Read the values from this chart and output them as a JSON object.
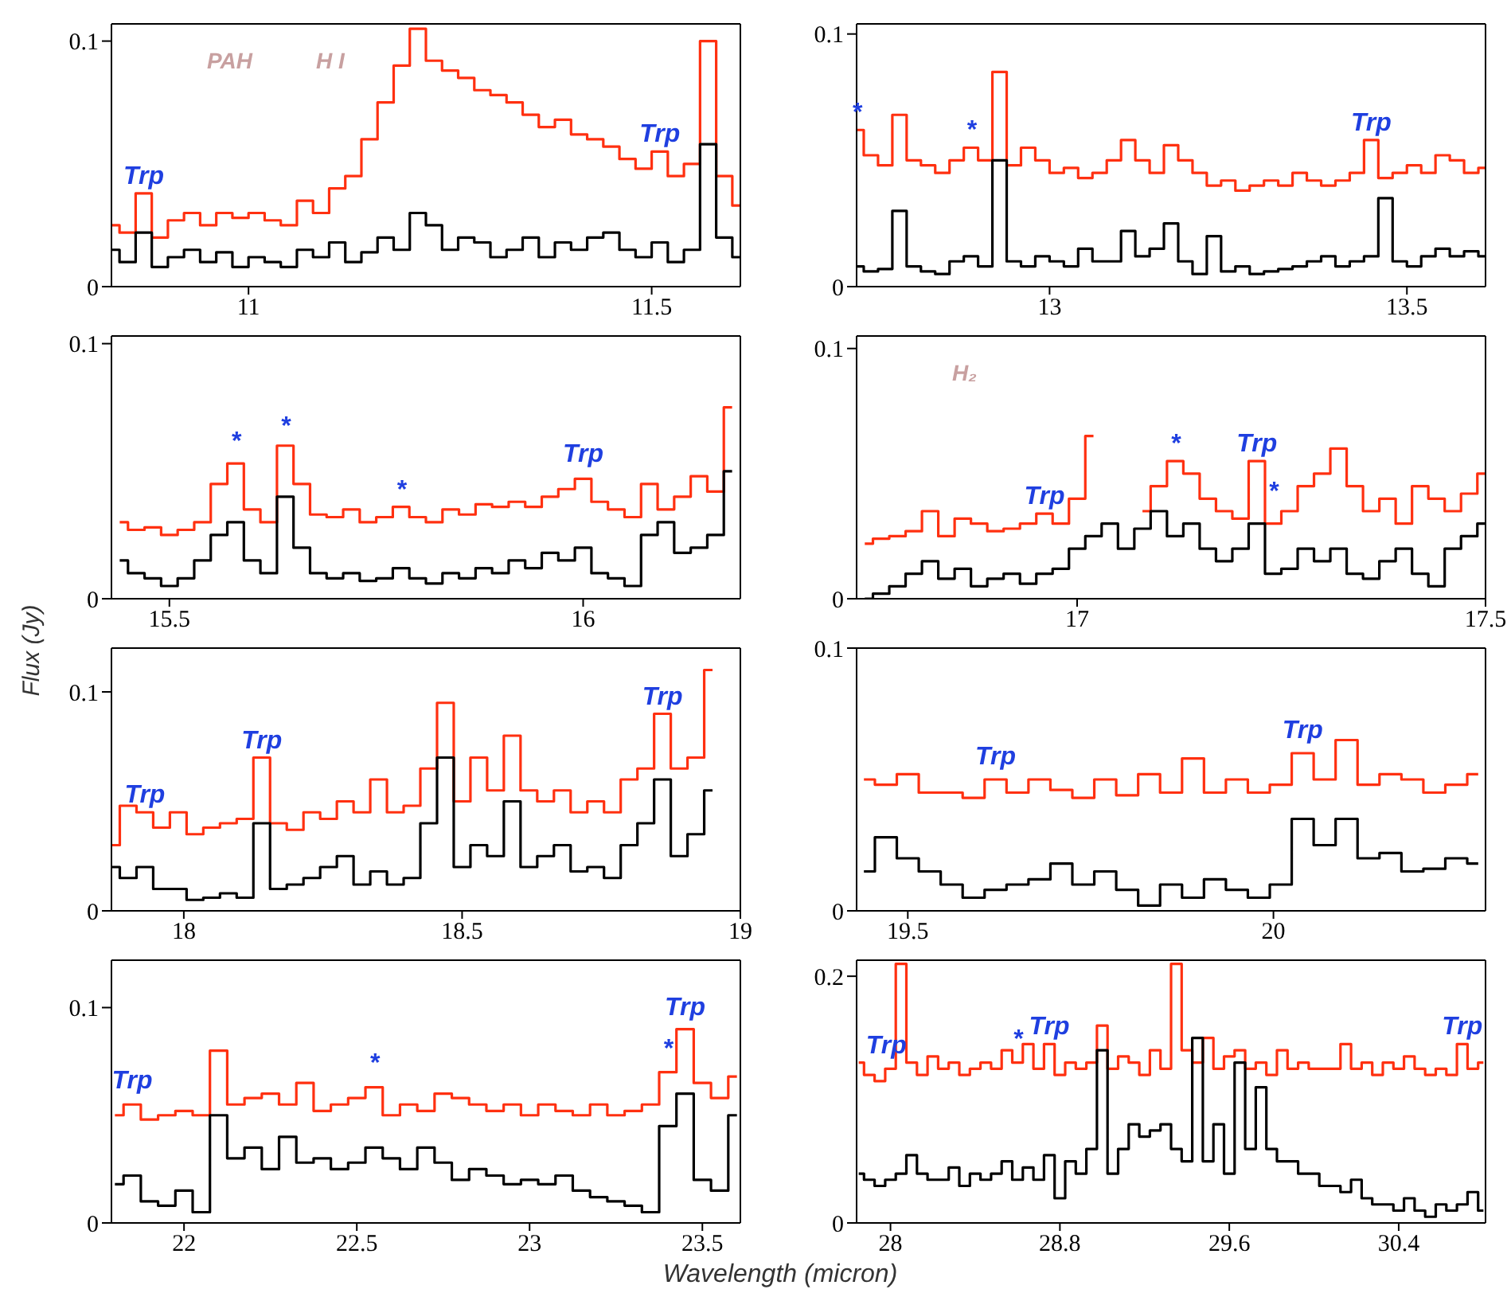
{
  "chart_data": [
    {
      "type": "step",
      "xlim": [
        10.83,
        11.61
      ],
      "xticks": [
        11,
        11.5
      ],
      "ylim": [
        0,
        0.107
      ],
      "yticks": [
        0,
        0.1
      ],
      "grid": false,
      "legend": false,
      "x": [
        10.83,
        10.85,
        10.87,
        10.89,
        10.91,
        10.93,
        10.95,
        10.97,
        10.99,
        11.01,
        11.03,
        11.05,
        11.07,
        11.09,
        11.11,
        11.13,
        11.15,
        11.17,
        11.19,
        11.21,
        11.23,
        11.25,
        11.27,
        11.29,
        11.31,
        11.33,
        11.35,
        11.37,
        11.39,
        11.41,
        11.43,
        11.45,
        11.47,
        11.49,
        11.51,
        11.53,
        11.55,
        11.57,
        11.59,
        11.61
      ],
      "series": [
        {
          "color": "#ff3010",
          "values": [
            0.025,
            0.022,
            0.038,
            0.02,
            0.027,
            0.03,
            0.025,
            0.03,
            0.028,
            0.03,
            0.027,
            0.025,
            0.035,
            0.03,
            0.04,
            0.045,
            0.06,
            0.075,
            0.09,
            0.105,
            0.092,
            0.088,
            0.085,
            0.08,
            0.078,
            0.075,
            0.07,
            0.065,
            0.068,
            0.062,
            0.06,
            0.057,
            0.052,
            0.048,
            0.055,
            0.045,
            0.05,
            0.1,
            0.045,
            0.033
          ]
        },
        {
          "color": "#000000",
          "values": [
            0.015,
            0.01,
            0.022,
            0.008,
            0.012,
            0.015,
            0.01,
            0.014,
            0.008,
            0.012,
            0.01,
            0.008,
            0.015,
            0.012,
            0.018,
            0.01,
            0.014,
            0.02,
            0.015,
            0.03,
            0.025,
            0.015,
            0.02,
            0.018,
            0.012,
            0.015,
            0.02,
            0.012,
            0.018,
            0.015,
            0.02,
            0.022,
            0.015,
            0.012,
            0.018,
            0.01,
            0.015,
            0.058,
            0.02,
            0.012
          ]
        }
      ],
      "annotations": [
        {
          "text": "Trp",
          "x": 10.87,
          "y": 0.038
        },
        {
          "text": "Trp",
          "x": 11.51,
          "y": 0.055
        },
        "PAH",
        "H I"
      ]
    },
    {
      "type": "step",
      "xlim": [
        12.73,
        13.61
      ],
      "xticks": [
        13,
        13.5
      ],
      "ylim": [
        0,
        0.104
      ],
      "yticks": [
        0,
        0.1
      ],
      "grid": false,
      "legend": false,
      "x": [
        12.73,
        12.75,
        12.77,
        12.79,
        12.81,
        12.83,
        12.85,
        12.87,
        12.89,
        12.91,
        12.93,
        12.95,
        12.97,
        12.99,
        13.01,
        13.03,
        13.05,
        13.07,
        13.09,
        13.11,
        13.13,
        13.15,
        13.17,
        13.19,
        13.21,
        13.23,
        13.25,
        13.27,
        13.29,
        13.31,
        13.33,
        13.35,
        13.37,
        13.39,
        13.41,
        13.43,
        13.45,
        13.47,
        13.49,
        13.51,
        13.53,
        13.55,
        13.57,
        13.59,
        13.61
      ],
      "series": [
        {
          "color": "#ff3010",
          "values": [
            0.062,
            0.052,
            0.048,
            0.068,
            0.05,
            0.048,
            0.045,
            0.05,
            0.055,
            0.05,
            0.085,
            0.048,
            0.055,
            0.05,
            0.045,
            0.047,
            0.043,
            0.045,
            0.05,
            0.058,
            0.05,
            0.045,
            0.056,
            0.05,
            0.045,
            0.04,
            0.042,
            0.038,
            0.04,
            0.042,
            0.04,
            0.045,
            0.042,
            0.04,
            0.042,
            0.045,
            0.058,
            0.043,
            0.045,
            0.048,
            0.045,
            0.052,
            0.05,
            0.045,
            0.047
          ]
        },
        {
          "color": "#000000",
          "values": [
            0.008,
            0.006,
            0.007,
            0.03,
            0.008,
            0.006,
            0.005,
            0.01,
            0.012,
            0.008,
            0.05,
            0.01,
            0.008,
            0.012,
            0.01,
            0.008,
            0.015,
            0.01,
            0.01,
            0.022,
            0.012,
            0.015,
            0.025,
            0.01,
            0.005,
            0.02,
            0.006,
            0.008,
            0.005,
            0.006,
            0.007,
            0.008,
            0.01,
            0.012,
            0.008,
            0.01,
            0.012,
            0.035,
            0.01,
            0.008,
            0.012,
            0.015,
            0.012,
            0.014,
            0.012
          ]
        }
      ],
      "annotations": [
        {
          "text": "*",
          "x": 12.73,
          "y": 0.062
        },
        {
          "text": "*",
          "x": 12.89,
          "y": 0.055
        },
        {
          "text": "Trp",
          "x": 13.45,
          "y": 0.058
        }
      ]
    },
    {
      "type": "step",
      "xlim": [
        15.43,
        16.19
      ],
      "xticks": [
        15.5,
        16
      ],
      "ylim": [
        0,
        0.103
      ],
      "yticks": [
        0,
        0.1
      ],
      "grid": false,
      "legend": false,
      "ylabel": "Flux (Jy)",
      "x": [
        15.44,
        15.46,
        15.48,
        15.5,
        15.52,
        15.54,
        15.56,
        15.58,
        15.6,
        15.62,
        15.64,
        15.66,
        15.68,
        15.7,
        15.72,
        15.74,
        15.76,
        15.78,
        15.8,
        15.82,
        15.84,
        15.86,
        15.88,
        15.9,
        15.92,
        15.94,
        15.96,
        15.98,
        16,
        16.02,
        16.04,
        16.06,
        16.08,
        16.1,
        16.12,
        16.14,
        16.16,
        16.18
      ],
      "series": [
        {
          "color": "#ff3010",
          "values": [
            0.03,
            0.027,
            0.028,
            0.025,
            0.027,
            0.03,
            0.045,
            0.053,
            0.035,
            0.03,
            0.06,
            0.045,
            0.033,
            0.032,
            0.035,
            0.03,
            0.032,
            0.036,
            0.032,
            0.03,
            0.035,
            0.033,
            0.037,
            0.036,
            0.038,
            0.036,
            0.04,
            0.043,
            0.047,
            0.038,
            0.035,
            0.032,
            0.045,
            0.035,
            0.04,
            0.048,
            0.042,
            0.075
          ]
        },
        {
          "color": "#000000",
          "values": [
            0.015,
            0.01,
            0.008,
            0.005,
            0.008,
            0.015,
            0.025,
            0.03,
            0.015,
            0.01,
            0.04,
            0.02,
            0.01,
            0.008,
            0.01,
            0.007,
            0.008,
            0.012,
            0.008,
            0.006,
            0.01,
            0.008,
            0.012,
            0.01,
            0.015,
            0.012,
            0.018,
            0.015,
            0.02,
            0.01,
            0.008,
            0.005,
            0.025,
            0.03,
            0.018,
            0.02,
            0.025,
            0.05
          ]
        }
      ],
      "annotations": [
        {
          "text": "*",
          "x": 15.58,
          "y": 0.055
        },
        {
          "text": "*",
          "x": 15.64,
          "y": 0.061
        },
        {
          "text": "*",
          "x": 15.78,
          "y": 0.036
        },
        {
          "text": "Trp",
          "x": 16,
          "y": 0.05
        }
      ]
    },
    {
      "type": "step",
      "xlim": [
        16.73,
        17.5
      ],
      "xticks": [
        17,
        17.5
      ],
      "ylim": [
        0,
        0.105
      ],
      "yticks": [
        0,
        0.1
      ],
      "grid": false,
      "legend": false,
      "x": [
        16.74,
        16.76,
        16.78,
        16.8,
        16.82,
        16.84,
        16.86,
        16.88,
        16.9,
        16.92,
        16.94,
        16.96,
        16.98,
        17,
        17.02,
        17.04,
        17.06,
        17.08,
        17.1,
        17.12,
        17.14,
        17.16,
        17.18,
        17.2,
        17.22,
        17.24,
        17.26,
        17.28,
        17.3,
        17.32,
        17.34,
        17.36,
        17.38,
        17.4,
        17.42,
        17.44,
        17.46,
        17.48,
        17.5
      ],
      "series": [
        {
          "color": "#ff3010",
          "values": [
            0.022,
            0.024,
            0.025,
            0.027,
            0.035,
            0.025,
            0.032,
            0.03,
            0.027,
            0.028,
            0.03,
            0.034,
            0.03,
            0.04,
            0.065,
            null,
            null,
            0.035,
            0.045,
            0.055,
            0.05,
            0.04,
            0.035,
            0.032,
            0.055,
            0.03,
            0.035,
            0.045,
            0.05,
            0.06,
            0.045,
            0.035,
            0.04,
            0.03,
            0.045,
            0.04,
            0.035,
            0.042,
            0.05
          ]
        },
        {
          "color": "#000000",
          "values": [
            0,
            0.002,
            0.005,
            0.01,
            0.015,
            0.008,
            0.012,
            0.005,
            0.008,
            0.01,
            0.006,
            0.01,
            0.012,
            0.02,
            0.025,
            0.03,
            0.02,
            0.028,
            0.035,
            0.025,
            0.03,
            0.02,
            0.015,
            0.02,
            0.03,
            0.01,
            0.012,
            0.02,
            0.015,
            0.02,
            0.01,
            0.008,
            0.015,
            0.02,
            0.01,
            0.005,
            0.02,
            0.025,
            0.03
          ]
        }
      ],
      "annotations": [
        "H₂",
        {
          "text": "Trp",
          "x": 16.96,
          "y": 0.034
        },
        {
          "text": "*",
          "x": 17.12,
          "y": 0.055
        },
        {
          "text": "Trp",
          "x": 17.22,
          "y": 0.055
        },
        {
          "text": "*",
          "x": 17.24,
          "y": 0.036
        }
      ]
    },
    {
      "type": "step",
      "xlim": [
        17.87,
        19
      ],
      "xticks": [
        18,
        18.5,
        19
      ],
      "ylim": [
        0,
        0.12
      ],
      "yticks": [
        0,
        0.1
      ],
      "grid": false,
      "legend": false,
      "x": [
        17.87,
        17.9,
        17.93,
        17.96,
        17.99,
        18.02,
        18.05,
        18.08,
        18.11,
        18.14,
        18.17,
        18.2,
        18.23,
        18.26,
        18.29,
        18.32,
        18.35,
        18.38,
        18.41,
        18.44,
        18.47,
        18.5,
        18.53,
        18.56,
        18.59,
        18.62,
        18.65,
        18.68,
        18.71,
        18.74,
        18.77,
        18.8,
        18.83,
        18.86,
        18.89,
        18.92,
        18.95
      ],
      "series": [
        {
          "color": "#ff3010",
          "values": [
            0.03,
            0.048,
            0.045,
            0.038,
            0.045,
            0.035,
            0.038,
            0.04,
            0.042,
            0.07,
            0.04,
            0.037,
            0.045,
            0.042,
            0.05,
            0.045,
            0.06,
            0.045,
            0.048,
            0.065,
            0.095,
            0.05,
            0.07,
            0.055,
            0.08,
            0.055,
            0.05,
            0.055,
            0.045,
            0.05,
            0.045,
            0.06,
            0.065,
            0.09,
            0.065,
            0.07,
            0.11
          ]
        },
        {
          "color": "#000000",
          "values": [
            0.02,
            0.015,
            0.02,
            0.01,
            0.01,
            0.005,
            0.006,
            0.008,
            0.006,
            0.04,
            0.01,
            0.012,
            0.015,
            0.02,
            0.025,
            0.012,
            0.018,
            0.012,
            0.015,
            0.04,
            0.07,
            0.02,
            0.03,
            0.025,
            0.05,
            0.02,
            0.025,
            0.03,
            0.018,
            0.02,
            0.015,
            0.03,
            0.04,
            0.06,
            0.025,
            0.035,
            0.055
          ]
        }
      ],
      "annotations": [
        {
          "text": "Trp",
          "x": 17.93,
          "y": 0.045
        },
        {
          "text": "Trp",
          "x": 18.14,
          "y": 0.07
        },
        {
          "text": "Trp",
          "x": 18.86,
          "y": 0.09
        }
      ]
    },
    {
      "type": "step",
      "xlim": [
        19.43,
        20.29
      ],
      "xticks": [
        19.5,
        20
      ],
      "ylim": [
        0,
        0.1
      ],
      "yticks": [
        0,
        0.1
      ],
      "grid": false,
      "legend": false,
      "x": [
        19.44,
        19.47,
        19.5,
        19.53,
        19.56,
        19.59,
        19.62,
        19.65,
        19.68,
        19.71,
        19.74,
        19.77,
        19.8,
        19.83,
        19.86,
        19.89,
        19.92,
        19.95,
        19.98,
        20.01,
        20.04,
        20.07,
        20.1,
        20.13,
        20.16,
        20.19,
        20.22,
        20.25,
        20.28
      ],
      "series": [
        {
          "color": "#ff3010",
          "values": [
            0.05,
            0.048,
            0.052,
            0.045,
            0.045,
            0.043,
            0.05,
            0.045,
            0.05,
            0.046,
            0.043,
            0.05,
            0.044,
            0.052,
            0.045,
            0.058,
            0.045,
            0.05,
            0.045,
            0.048,
            0.06,
            0.05,
            0.065,
            0.048,
            0.052,
            0.05,
            0.045,
            0.048,
            0.052
          ]
        },
        {
          "color": "#000000",
          "values": [
            0.015,
            0.028,
            0.02,
            0.015,
            0.01,
            0.005,
            0.008,
            0.01,
            0.012,
            0.018,
            0.01,
            0.015,
            0.008,
            0.002,
            0.01,
            0.005,
            0.012,
            0.008,
            0.005,
            0.01,
            0.035,
            0.025,
            0.035,
            0.02,
            0.022,
            0.015,
            0.016,
            0.02,
            0.018
          ]
        }
      ],
      "annotations": [
        {
          "text": "Trp",
          "x": 19.62,
          "y": 0.052
        },
        {
          "text": "Trp",
          "x": 20.04,
          "y": 0.062
        }
      ]
    },
    {
      "type": "step",
      "xlim": [
        21.79,
        23.61
      ],
      "xticks": [
        22,
        22.5,
        23,
        23.5
      ],
      "ylim": [
        0,
        0.122
      ],
      "yticks": [
        0,
        0.1
      ],
      "grid": false,
      "legend": false,
      "x": [
        21.8,
        21.85,
        21.9,
        21.95,
        22,
        22.05,
        22.1,
        22.15,
        22.2,
        22.25,
        22.3,
        22.35,
        22.4,
        22.45,
        22.5,
        22.55,
        22.6,
        22.65,
        22.7,
        22.75,
        22.8,
        22.85,
        22.9,
        22.95,
        23,
        23.05,
        23.1,
        23.15,
        23.2,
        23.25,
        23.3,
        23.35,
        23.4,
        23.45,
        23.5,
        23.55,
        23.6
      ],
      "series": [
        {
          "color": "#ff3010",
          "values": [
            0.05,
            0.055,
            0.048,
            0.05,
            0.052,
            0.05,
            0.08,
            0.055,
            0.058,
            0.06,
            0.055,
            0.065,
            0.052,
            0.055,
            0.058,
            0.063,
            0.05,
            0.055,
            0.052,
            0.06,
            0.058,
            0.055,
            0.052,
            0.055,
            0.05,
            0.055,
            0.052,
            0.05,
            0.055,
            0.05,
            0.052,
            0.055,
            0.07,
            0.09,
            0.065,
            0.058,
            0.068
          ]
        },
        {
          "color": "#000000",
          "values": [
            0.018,
            0.022,
            0.01,
            0.008,
            0.015,
            0.005,
            0.05,
            0.03,
            0.035,
            0.025,
            0.04,
            0.028,
            0.03,
            0.025,
            0.028,
            0.035,
            0.03,
            0.025,
            0.035,
            0.028,
            0.02,
            0.025,
            0.022,
            0.018,
            0.02,
            0.018,
            0.022,
            0.015,
            0.012,
            0.01,
            0.008,
            0.005,
            0.045,
            0.06,
            0.02,
            0.015,
            0.05
          ]
        }
      ],
      "annotations": [
        {
          "text": "Trp",
          "x": 21.85,
          "y": 0.058
        },
        {
          "text": "*",
          "x": 22.55,
          "y": 0.066
        },
        {
          "text": "*",
          "x": 23.4,
          "y": 0.073
        },
        {
          "text": "Trp",
          "x": 23.45,
          "y": 0.092
        }
      ]
    },
    {
      "type": "step",
      "xlim": [
        27.84,
        30.81
      ],
      "xticks": [
        28,
        28.8,
        29.6,
        30.4
      ],
      "ylim": [
        0,
        0.213
      ],
      "yticks": [
        0,
        0.2
      ],
      "grid": false,
      "legend": false,
      "xlabel": "Wavelength (micron)",
      "x": [
        27.85,
        27.9,
        27.95,
        28,
        28.05,
        28.1,
        28.15,
        28.2,
        28.25,
        28.3,
        28.35,
        28.4,
        28.45,
        28.5,
        28.55,
        28.6,
        28.65,
        28.7,
        28.75,
        28.8,
        28.85,
        28.9,
        28.95,
        29,
        29.05,
        29.1,
        29.15,
        29.2,
        29.25,
        29.3,
        29.35,
        29.4,
        29.45,
        29.5,
        29.55,
        29.6,
        29.65,
        29.7,
        29.75,
        29.8,
        29.85,
        29.9,
        29.95,
        30,
        30.05,
        30.1,
        30.15,
        30.2,
        30.25,
        30.3,
        30.35,
        30.4,
        30.45,
        30.5,
        30.55,
        30.6,
        30.65,
        30.7,
        30.75,
        30.8
      ],
      "series": [
        {
          "color": "#ff3010",
          "values": [
            0.13,
            0.12,
            0.115,
            0.125,
            0.21,
            0.13,
            0.12,
            0.135,
            0.125,
            0.13,
            0.12,
            0.125,
            0.13,
            0.125,
            0.14,
            0.13,
            0.145,
            0.125,
            0.145,
            0.12,
            0.13,
            0.125,
            0.13,
            0.16,
            0.125,
            0.135,
            0.13,
            0.12,
            0.14,
            0.125,
            0.21,
            0.14,
            0.13,
            0.15,
            0.125,
            0.135,
            0.14,
            0.125,
            0.13,
            0.12,
            0.14,
            0.125,
            0.13,
            0.125,
            0.125,
            0.125,
            0.145,
            0.125,
            0.13,
            0.12,
            0.13,
            0.125,
            0.135,
            0.125,
            0.12,
            0.125,
            0.12,
            0.145,
            0.125,
            0.13
          ]
        },
        {
          "color": "#000000",
          "values": [
            0.04,
            0.035,
            0.03,
            0.035,
            0.04,
            0.055,
            0.04,
            0.035,
            0.035,
            0.045,
            0.03,
            0.04,
            0.035,
            0.04,
            0.05,
            0.035,
            0.045,
            0.035,
            0.055,
            0.02,
            0.05,
            0.04,
            0.06,
            0.14,
            0.04,
            0.06,
            0.08,
            0.07,
            0.075,
            0.08,
            0.06,
            0.05,
            0.15,
            0.05,
            0.08,
            0.04,
            0.13,
            0.06,
            0.11,
            0.06,
            0.05,
            0.05,
            0.04,
            0.04,
            0.03,
            0.03,
            0.025,
            0.035,
            0.02,
            0.015,
            0.015,
            0.01,
            0.02,
            0.01,
            0.005,
            0.015,
            0.01,
            0.015,
            0.025,
            0.01
          ]
        }
      ],
      "annotations": [
        {
          "text": "Trp",
          "x": 27.98,
          "y": 0.13
        },
        {
          "text": "*",
          "x": 28.6,
          "y": 0.135
        },
        {
          "text": "Trp",
          "x": 28.75,
          "y": 0.145
        },
        {
          "text": "Trp",
          "x": 30.7,
          "y": 0.145
        }
      ]
    }
  ]
}
